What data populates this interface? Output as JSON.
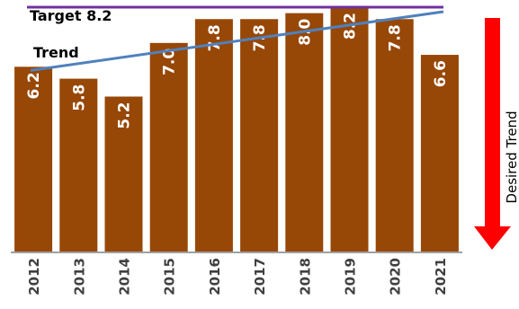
{
  "chart_data": {
    "type": "bar",
    "categories": [
      "2012",
      "2013",
      "2014",
      "2015",
      "2016",
      "2017",
      "2018",
      "2019",
      "2020",
      "2021"
    ],
    "values": [
      6.2,
      5.8,
      5.2,
      7.0,
      7.8,
      7.8,
      8.0,
      8.2,
      7.8,
      6.6
    ],
    "data_labels": [
      "6.2",
      "5.8",
      "5.2",
      "7.0",
      "7.8",
      "7.8",
      "8.0",
      "8.2",
      "7.8",
      "6.6"
    ],
    "ylim": [
      0,
      8.2
    ],
    "grid": false,
    "legend": "none",
    "target": {
      "label": "Target 8.2",
      "value": 8.2
    },
    "trend": {
      "label": "Trend",
      "start_value": 6.2,
      "end_value": 8.2
    },
    "desired_trend": {
      "label": "Desired Trend",
      "direction": "down"
    },
    "colors": {
      "bar": "#974706",
      "target_line": "#7030A0",
      "trend_line": "#4F81BD",
      "arrow": "#FF0000",
      "bar_label": "#FFFFFF",
      "axis": "#808080"
    }
  }
}
